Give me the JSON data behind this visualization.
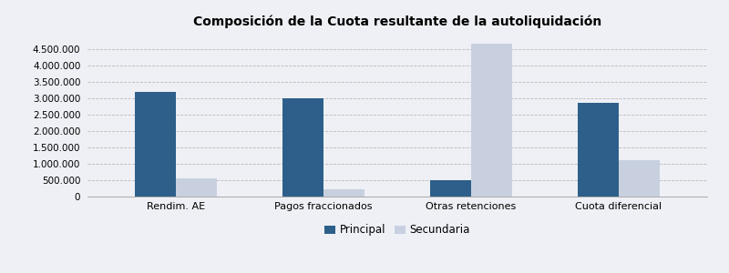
{
  "title": "Composición de la Cuota resultante de la autoliquidación",
  "categories": [
    "Rendim. AE",
    "Pagos fraccionados",
    "Otras retenciones",
    "Cuota diferencial"
  ],
  "principal": [
    3200000,
    3000000,
    500000,
    2850000
  ],
  "secundaria": [
    560000,
    230000,
    4680000,
    1120000
  ],
  "color_principal": "#2e5f8a",
  "color_secundaria": "#c8d0e0",
  "bar_width": 0.28,
  "ylim": [
    0,
    5000000
  ],
  "yticks": [
    0,
    500000,
    1000000,
    1500000,
    2000000,
    2500000,
    3000000,
    3500000,
    4000000,
    4500000
  ],
  "legend_labels": [
    "Principal",
    "Secundaria"
  ],
  "background_color": "#eef0f5",
  "plot_bg_color": "#eef0f5",
  "grid_color": "#bbbbbb",
  "title_fontsize": 10,
  "tick_fontsize": 7.5,
  "xlabel_fontsize": 8
}
